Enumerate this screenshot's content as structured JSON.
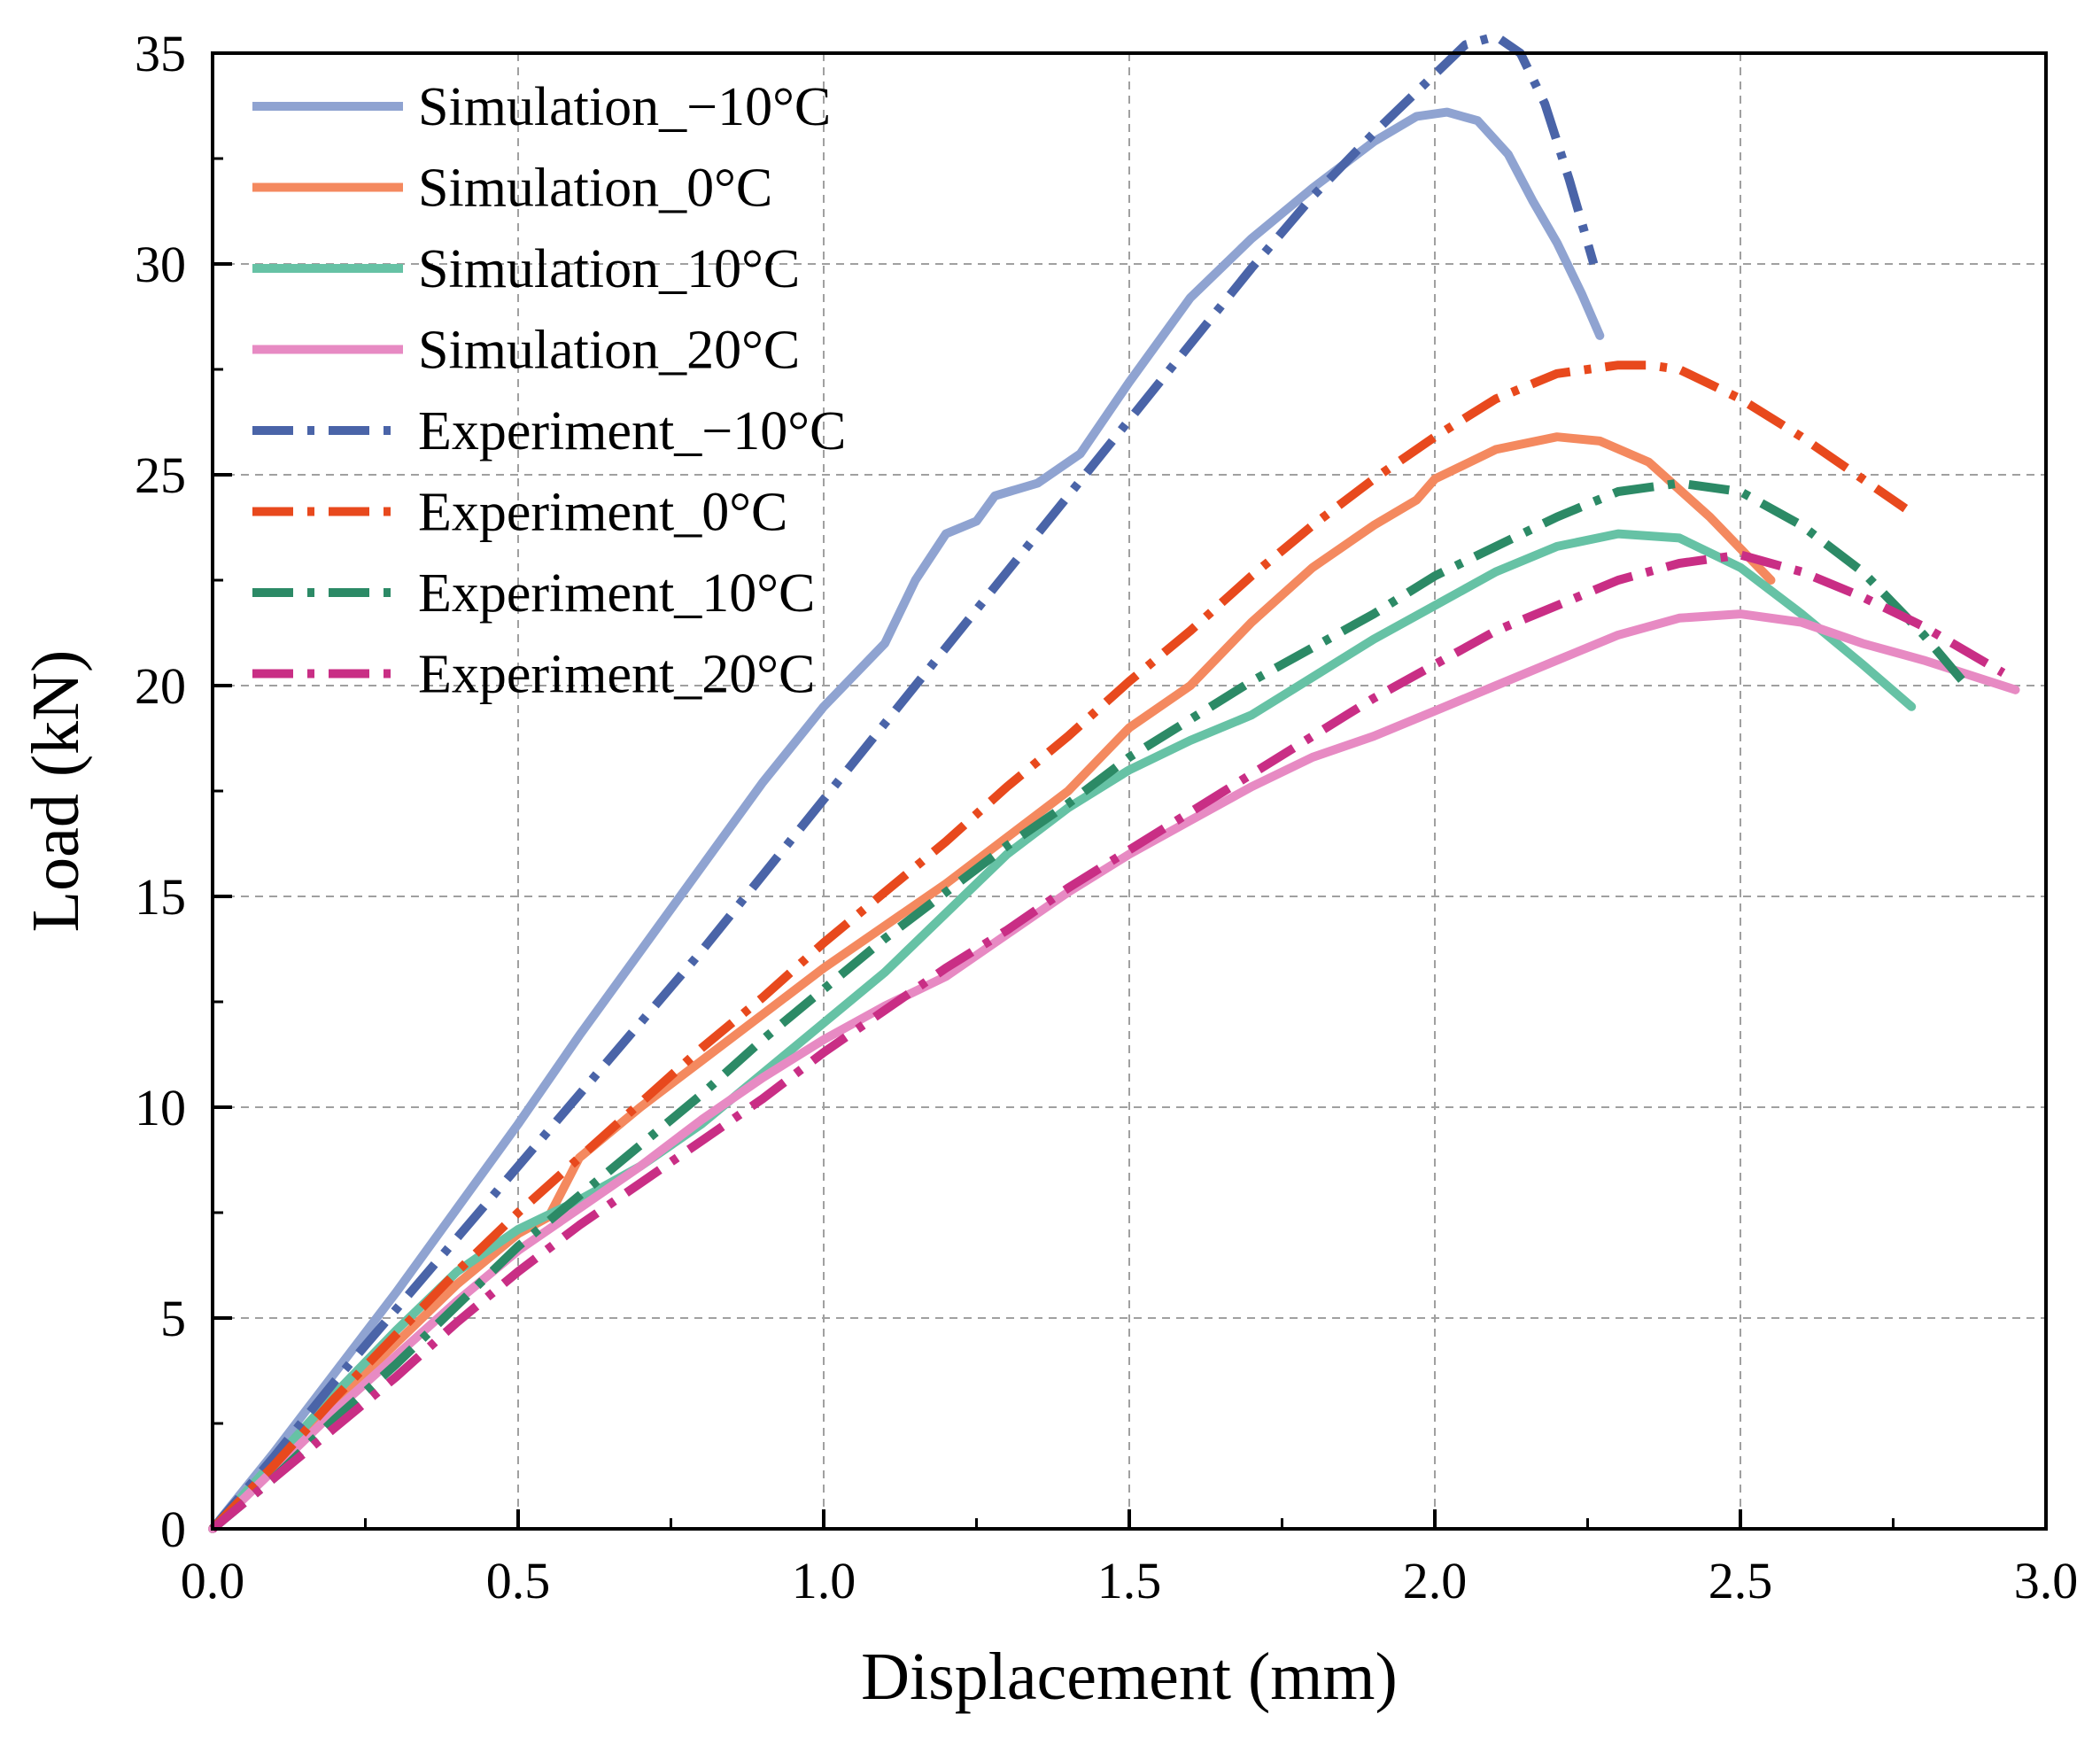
{
  "chart_data": {
    "type": "line",
    "xlabel": "Displacement (mm)",
    "ylabel": "Load (kN)",
    "xlim": [
      0,
      3.0
    ],
    "ylim": [
      0,
      35
    ],
    "xticks": [
      "0.0",
      "0.5",
      "1.0",
      "1.5",
      "2.0",
      "2.5",
      "3.0"
    ],
    "yticks": [
      "0",
      "5",
      "10",
      "15",
      "20",
      "25",
      "30",
      "35"
    ],
    "grid": true,
    "legend_position": "top-left",
    "series": [
      {
        "name": "Simulation_−10°C",
        "style": "solid",
        "color": "#8fa3d1",
        "x": [
          0,
          0.1,
          0.2,
          0.3,
          0.4,
          0.5,
          0.6,
          0.7,
          0.8,
          0.9,
          1.0,
          1.1,
          1.15,
          1.2,
          1.25,
          1.28,
          1.35,
          1.42,
          1.5,
          1.6,
          1.7,
          1.8,
          1.9,
          1.97,
          2.02,
          2.07,
          2.12,
          2.16,
          2.2,
          2.24,
          2.27
        ],
        "y": [
          0,
          1.8,
          3.7,
          5.6,
          7.6,
          9.6,
          11.7,
          13.7,
          15.7,
          17.7,
          19.5,
          21.0,
          22.5,
          23.6,
          23.9,
          24.5,
          24.8,
          25.5,
          27.2,
          29.2,
          30.6,
          31.8,
          32.9,
          33.5,
          33.6,
          33.4,
          32.6,
          31.5,
          30.5,
          29.3,
          28.3
        ]
      },
      {
        "name": "Simulation_0°C",
        "style": "solid",
        "color": "#f4895f",
        "x": [
          0,
          0.1,
          0.2,
          0.3,
          0.4,
          0.5,
          0.55,
          0.6,
          0.7,
          0.8,
          0.9,
          1.0,
          1.2,
          1.4,
          1.5,
          1.6,
          1.7,
          1.8,
          1.9,
          1.97,
          2.0,
          2.1,
          2.2,
          2.27,
          2.35,
          2.45,
          2.55
        ],
        "y": [
          0,
          1.5,
          3.0,
          4.4,
          5.8,
          7.0,
          7.4,
          8.8,
          10.0,
          11.1,
          12.2,
          13.3,
          15.3,
          17.5,
          19.0,
          20.0,
          21.5,
          22.8,
          23.8,
          24.4,
          24.9,
          25.6,
          25.9,
          25.8,
          25.3,
          24.0,
          22.5
        ]
      },
      {
        "name": "Simulation_10°C",
        "style": "solid",
        "color": "#66c2a5",
        "x": [
          0,
          0.1,
          0.2,
          0.3,
          0.4,
          0.5,
          0.6,
          0.7,
          0.8,
          0.9,
          1.0,
          1.1,
          1.2,
          1.3,
          1.4,
          1.5,
          1.6,
          1.7,
          1.8,
          1.9,
          2.0,
          2.1,
          2.2,
          2.3,
          2.4,
          2.5,
          2.6,
          2.7,
          2.78
        ],
        "y": [
          0,
          1.6,
          3.2,
          4.7,
          6.1,
          7.1,
          7.8,
          8.6,
          9.6,
          10.8,
          12.0,
          13.2,
          14.6,
          16.0,
          17.1,
          18.0,
          18.7,
          19.3,
          20.2,
          21.1,
          21.9,
          22.7,
          23.3,
          23.6,
          23.5,
          22.8,
          21.7,
          20.5,
          19.5
        ]
      },
      {
        "name": "Simulation_20°C",
        "style": "solid",
        "color": "#e78ac3",
        "x": [
          0,
          0.1,
          0.2,
          0.3,
          0.4,
          0.5,
          0.6,
          0.7,
          0.8,
          0.9,
          1.0,
          1.1,
          1.2,
          1.3,
          1.4,
          1.5,
          1.6,
          1.7,
          1.8,
          1.9,
          2.0,
          2.1,
          2.2,
          2.3,
          2.4,
          2.5,
          2.6,
          2.7,
          2.8,
          2.95
        ],
        "y": [
          0,
          1.4,
          2.8,
          4.1,
          5.4,
          6.6,
          7.6,
          8.6,
          9.7,
          10.7,
          11.6,
          12.4,
          13.1,
          14.1,
          15.1,
          16.0,
          16.8,
          17.6,
          18.3,
          18.8,
          19.4,
          20.0,
          20.6,
          21.2,
          21.6,
          21.7,
          21.5,
          21.0,
          20.6,
          19.9
        ]
      },
      {
        "name": "Experiment_−10°C",
        "style": "dashdot",
        "color": "#4a64a8",
        "x": [
          0,
          0.1,
          0.2,
          0.3,
          0.4,
          0.5,
          0.6,
          0.7,
          0.8,
          0.9,
          1.0,
          1.1,
          1.2,
          1.3,
          1.4,
          1.5,
          1.6,
          1.7,
          1.8,
          1.9,
          2.0,
          2.05,
          2.1,
          2.14,
          2.18,
          2.22,
          2.26
        ],
        "y": [
          0,
          1.7,
          3.5,
          5.2,
          6.9,
          8.6,
          10.3,
          12.0,
          13.7,
          15.5,
          17.3,
          19.1,
          20.9,
          22.7,
          24.5,
          26.3,
          28.1,
          29.9,
          31.6,
          33.1,
          34.5,
          35.2,
          35.4,
          35.0,
          33.8,
          32.0,
          30.0
        ]
      },
      {
        "name": "Experiment_0°C",
        "style": "dashdot",
        "color": "#e8491d",
        "x": [
          0,
          0.1,
          0.2,
          0.3,
          0.4,
          0.5,
          0.6,
          0.7,
          0.8,
          0.9,
          1.0,
          1.1,
          1.2,
          1.3,
          1.4,
          1.5,
          1.6,
          1.7,
          1.8,
          1.9,
          2.0,
          2.1,
          2.2,
          2.3,
          2.35,
          2.4,
          2.5,
          2.6,
          2.7,
          2.77
        ],
        "y": [
          0,
          1.5,
          3.1,
          4.6,
          6.1,
          7.5,
          8.8,
          10.1,
          11.4,
          12.6,
          13.9,
          15.1,
          16.3,
          17.6,
          18.8,
          20.1,
          21.3,
          22.6,
          23.8,
          24.9,
          25.9,
          26.8,
          27.4,
          27.6,
          27.6,
          27.5,
          26.8,
          25.9,
          24.9,
          24.2
        ]
      },
      {
        "name": "Experiment_10°C",
        "style": "dashdot",
        "color": "#2c8a66",
        "x": [
          0,
          0.1,
          0.2,
          0.3,
          0.4,
          0.5,
          0.6,
          0.7,
          0.8,
          0.9,
          1.0,
          1.1,
          1.2,
          1.3,
          1.4,
          1.5,
          1.6,
          1.7,
          1.8,
          1.9,
          2.0,
          2.1,
          2.2,
          2.3,
          2.4,
          2.5,
          2.6,
          2.7,
          2.8,
          2.87
        ],
        "y": [
          0,
          1.2,
          2.6,
          3.9,
          5.3,
          6.7,
          7.9,
          9.1,
          10.3,
          11.6,
          12.8,
          14.0,
          15.1,
          16.2,
          17.2,
          18.3,
          19.2,
          20.1,
          20.9,
          21.7,
          22.6,
          23.3,
          24.0,
          24.6,
          24.8,
          24.6,
          23.8,
          22.7,
          21.2,
          20.0
        ]
      },
      {
        "name": "Experiment_20°C",
        "style": "dashdot",
        "color": "#c92e85",
        "x": [
          0,
          0.1,
          0.2,
          0.3,
          0.4,
          0.5,
          0.6,
          0.7,
          0.8,
          0.9,
          1.0,
          1.1,
          1.2,
          1.3,
          1.4,
          1.5,
          1.6,
          1.7,
          1.8,
          1.9,
          2.0,
          2.1,
          2.2,
          2.3,
          2.4,
          2.5,
          2.6,
          2.7,
          2.8,
          2.93
        ],
        "y": [
          0,
          1.2,
          2.4,
          3.6,
          4.9,
          6.1,
          7.2,
          8.2,
          9.2,
          10.2,
          11.3,
          12.3,
          13.3,
          14.2,
          15.2,
          16.1,
          17.0,
          17.9,
          18.8,
          19.7,
          20.5,
          21.3,
          21.9,
          22.5,
          22.9,
          23.1,
          22.7,
          22.1,
          21.4,
          20.3
        ]
      }
    ]
  }
}
